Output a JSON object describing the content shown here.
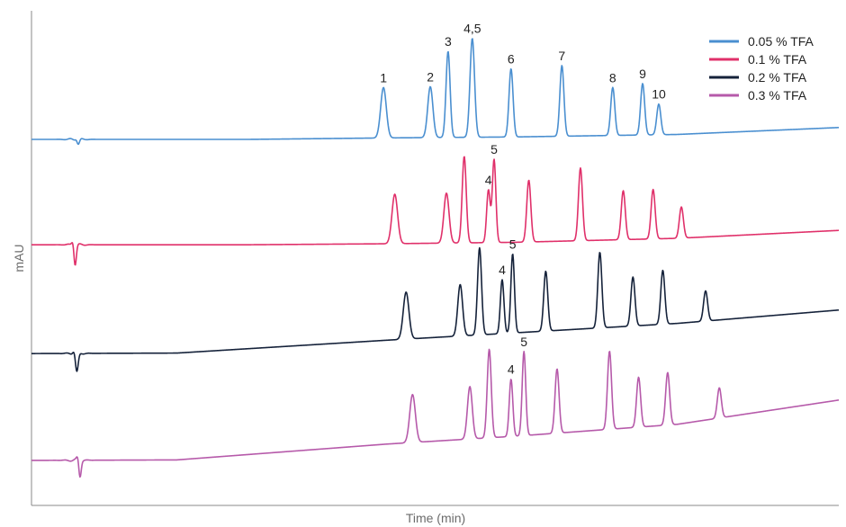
{
  "chart_data": {
    "type": "line",
    "title": "",
    "xlabel": "Time (min)",
    "ylabel": "mAU",
    "xlim": [
      0,
      100
    ],
    "ylim": [
      0,
      100
    ],
    "grid": false,
    "legend_position": "top-right",
    "x_ticks": "none",
    "y_ticks": "none",
    "series": [
      {
        "name": "0.05 % TFA",
        "color": "#4a8fd0",
        "baseline": {
          "x": [
            0,
            27,
            44,
            60,
            80,
            100
          ],
          "y": [
            74.0,
            74.0,
            74.3,
            74.5,
            75.0,
            76.4
          ]
        },
        "peaks": [
          {
            "x": 43.6,
            "height": 10.2,
            "width": 0.35,
            "label": "1"
          },
          {
            "x": 49.4,
            "height": 10.3,
            "width": 0.32,
            "label": "2"
          },
          {
            "x": 51.6,
            "height": 17.4,
            "width": 0.25,
            "label": "3"
          },
          {
            "x": 54.6,
            "height": 20.0,
            "width": 0.28,
            "label": "4,5"
          },
          {
            "x": 59.4,
            "height": 13.8,
            "width": 0.25,
            "label": "6"
          },
          {
            "x": 65.7,
            "height": 14.3,
            "width": 0.25,
            "label": "7"
          },
          {
            "x": 72.0,
            "height": 9.7,
            "width": 0.25,
            "label": "8"
          },
          {
            "x": 75.7,
            "height": 10.4,
            "width": 0.25,
            "label": "9"
          },
          {
            "x": 77.7,
            "height": 6.2,
            "width": 0.25,
            "label": "10"
          }
        ],
        "dips": [
          {
            "x": 5.8,
            "depth": 1.0,
            "width": 0.15
          }
        ]
      },
      {
        "name": "0.1 % TFA",
        "color": "#e0306a",
        "baseline": {
          "x": [
            0,
            27,
            44,
            60,
            80,
            100
          ],
          "y": [
            52.7,
            52.7,
            52.9,
            53.2,
            54.0,
            55.6
          ]
        },
        "peaks": [
          {
            "x": 45.0,
            "height": 10.0,
            "width": 0.35,
            "label": ""
          },
          {
            "x": 51.4,
            "height": 10.1,
            "width": 0.32,
            "label": ""
          },
          {
            "x": 53.6,
            "height": 17.5,
            "width": 0.25,
            "label": ""
          },
          {
            "x": 56.6,
            "height": 10.6,
            "width": 0.22,
            "label": "4"
          },
          {
            "x": 57.3,
            "height": 16.8,
            "width": 0.22,
            "label": "5"
          },
          {
            "x": 61.6,
            "height": 12.5,
            "width": 0.25,
            "label": ""
          },
          {
            "x": 68.0,
            "height": 14.7,
            "width": 0.25,
            "label": ""
          },
          {
            "x": 73.3,
            "height": 9.9,
            "width": 0.25,
            "label": ""
          },
          {
            "x": 77.0,
            "height": 10.0,
            "width": 0.25,
            "label": ""
          },
          {
            "x": 80.5,
            "height": 6.3,
            "width": 0.25,
            "label": ""
          }
        ],
        "dips": [
          {
            "x": 5.4,
            "depth": 4.2,
            "width": 0.15
          }
        ]
      },
      {
        "name": "0.2 % TFA",
        "color": "#15223a",
        "baseline": {
          "x": [
            0,
            18,
            44,
            60,
            80,
            100
          ],
          "y": [
            30.7,
            30.8,
            33.4,
            34.9,
            36.8,
            39.5
          ]
        },
        "peaks": [
          {
            "x": 46.4,
            "height": 9.5,
            "width": 0.35,
            "label": ""
          },
          {
            "x": 53.1,
            "height": 10.4,
            "width": 0.3,
            "label": ""
          },
          {
            "x": 55.5,
            "height": 17.6,
            "width": 0.25,
            "label": ""
          },
          {
            "x": 58.3,
            "height": 10.9,
            "width": 0.22,
            "label": "4"
          },
          {
            "x": 59.6,
            "height": 16.0,
            "width": 0.22,
            "label": "5"
          },
          {
            "x": 63.7,
            "height": 12.1,
            "width": 0.25,
            "label": ""
          },
          {
            "x": 70.4,
            "height": 15.3,
            "width": 0.25,
            "label": ""
          },
          {
            "x": 74.5,
            "height": 9.9,
            "width": 0.25,
            "label": ""
          },
          {
            "x": 78.2,
            "height": 10.9,
            "width": 0.25,
            "label": ""
          },
          {
            "x": 83.5,
            "height": 6.1,
            "width": 0.25,
            "label": ""
          }
        ],
        "dips": [
          {
            "x": 5.6,
            "depth": 4.2,
            "width": 0.18
          }
        ]
      },
      {
        "name": "0.3 % TFA",
        "color": "#b65aaa",
        "baseline": {
          "x": [
            0,
            18,
            44,
            60,
            80,
            100
          ],
          "y": [
            9.1,
            9.2,
            12.4,
            14.0,
            16.4,
            21.3
          ]
        },
        "peaks": [
          {
            "x": 47.2,
            "height": 9.7,
            "width": 0.35,
            "label": ""
          },
          {
            "x": 54.3,
            "height": 10.6,
            "width": 0.3,
            "label": ""
          },
          {
            "x": 56.7,
            "height": 17.9,
            "width": 0.25,
            "label": ""
          },
          {
            "x": 59.4,
            "height": 11.6,
            "width": 0.22,
            "label": "4"
          },
          {
            "x": 61.0,
            "height": 17.0,
            "width": 0.22,
            "label": "5"
          },
          {
            "x": 65.1,
            "height": 13.0,
            "width": 0.25,
            "label": ""
          },
          {
            "x": 71.6,
            "height": 15.8,
            "width": 0.25,
            "label": ""
          },
          {
            "x": 75.2,
            "height": 10.1,
            "width": 0.25,
            "label": ""
          },
          {
            "x": 78.8,
            "height": 10.6,
            "width": 0.25,
            "label": ""
          },
          {
            "x": 85.2,
            "height": 6.1,
            "width": 0.25,
            "label": ""
          }
        ],
        "dips": [
          {
            "x": 6.0,
            "depth": 3.5,
            "width": 0.15
          }
        ]
      }
    ]
  }
}
